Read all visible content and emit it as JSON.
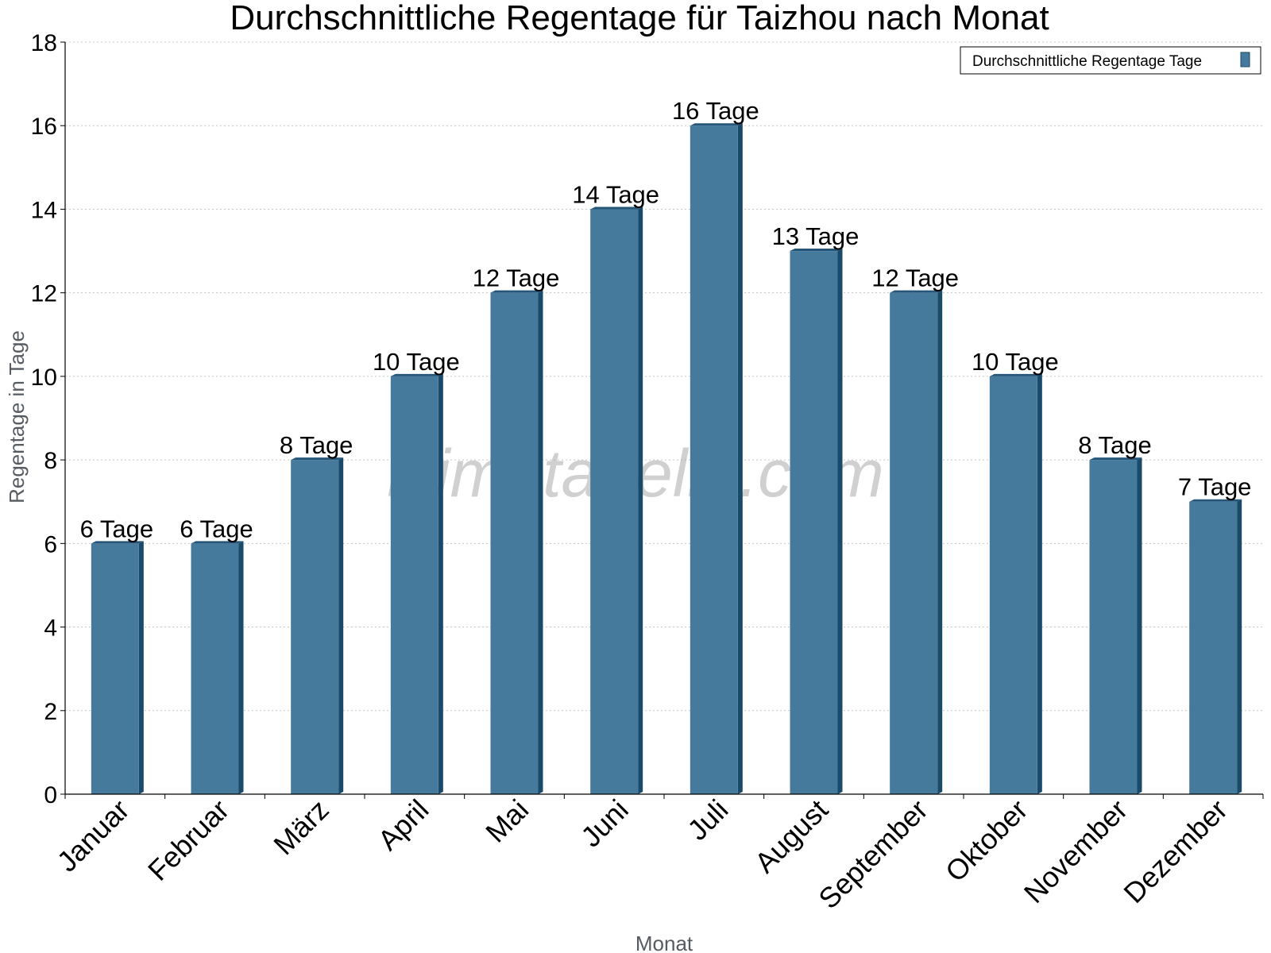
{
  "chart_data": {
    "type": "bar",
    "title": "Durchschnittliche Regentage für Taizhou nach Monat",
    "xlabel": "Monat",
    "ylabel": "Regentage in Tage",
    "categories": [
      "Januar",
      "Februar",
      "März",
      "April",
      "Mai",
      "Juni",
      "Juli",
      "August",
      "September",
      "Oktober",
      "November",
      "Dezember"
    ],
    "series": [
      {
        "name": "Durchschnittliche Regentage Tage",
        "values": [
          6,
          6,
          8,
          10,
          12,
          14,
          16,
          13,
          12,
          10,
          8,
          7
        ],
        "data_labels": [
          "6 Tage",
          "6 Tage",
          "8 Tage",
          "10 Tage",
          "12 Tage",
          "14 Tage",
          "16 Tage",
          "13 Tage",
          "12 Tage",
          "10 Tage",
          "8 Tage",
          "7 Tage"
        ]
      }
    ],
    "ylim": [
      0,
      18
    ],
    "yticks": [
      0,
      2,
      4,
      6,
      8,
      10,
      12,
      14,
      16,
      18
    ],
    "grid": true,
    "legend_position": "top-right",
    "colors": {
      "bar": "#467a9d",
      "bar_side": "#1a4a6a",
      "bar_top": "#255579",
      "grid": "#c8c8c8"
    }
  },
  "watermark": "klimatabelle.com"
}
